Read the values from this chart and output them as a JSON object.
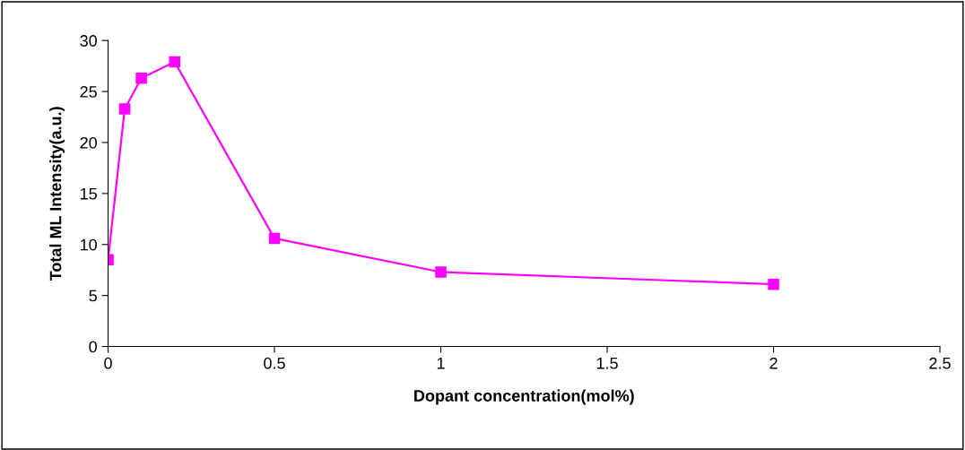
{
  "chart_data": {
    "type": "line",
    "xlabel": "Dopant concentration(mol%)",
    "ylabel": "Total ML Intensity(a.u.)",
    "x": [
      0,
      0.05,
      0.1,
      0.2,
      0.5,
      1,
      2
    ],
    "series": [
      {
        "color": "#ff00ff",
        "values": [
          8.5,
          23.3,
          26.3,
          27.9,
          10.6,
          7.3,
          6.1
        ]
      }
    ],
    "marker": "square",
    "line_style": "solid",
    "xlim": [
      0,
      2.5
    ],
    "xticks": [
      0,
      0.5,
      1,
      1.5,
      2,
      2.5
    ],
    "ylim": [
      0,
      30
    ],
    "yticks": [
      0,
      5,
      10,
      15,
      20,
      25,
      30
    ],
    "grid": false,
    "legend": false
  }
}
